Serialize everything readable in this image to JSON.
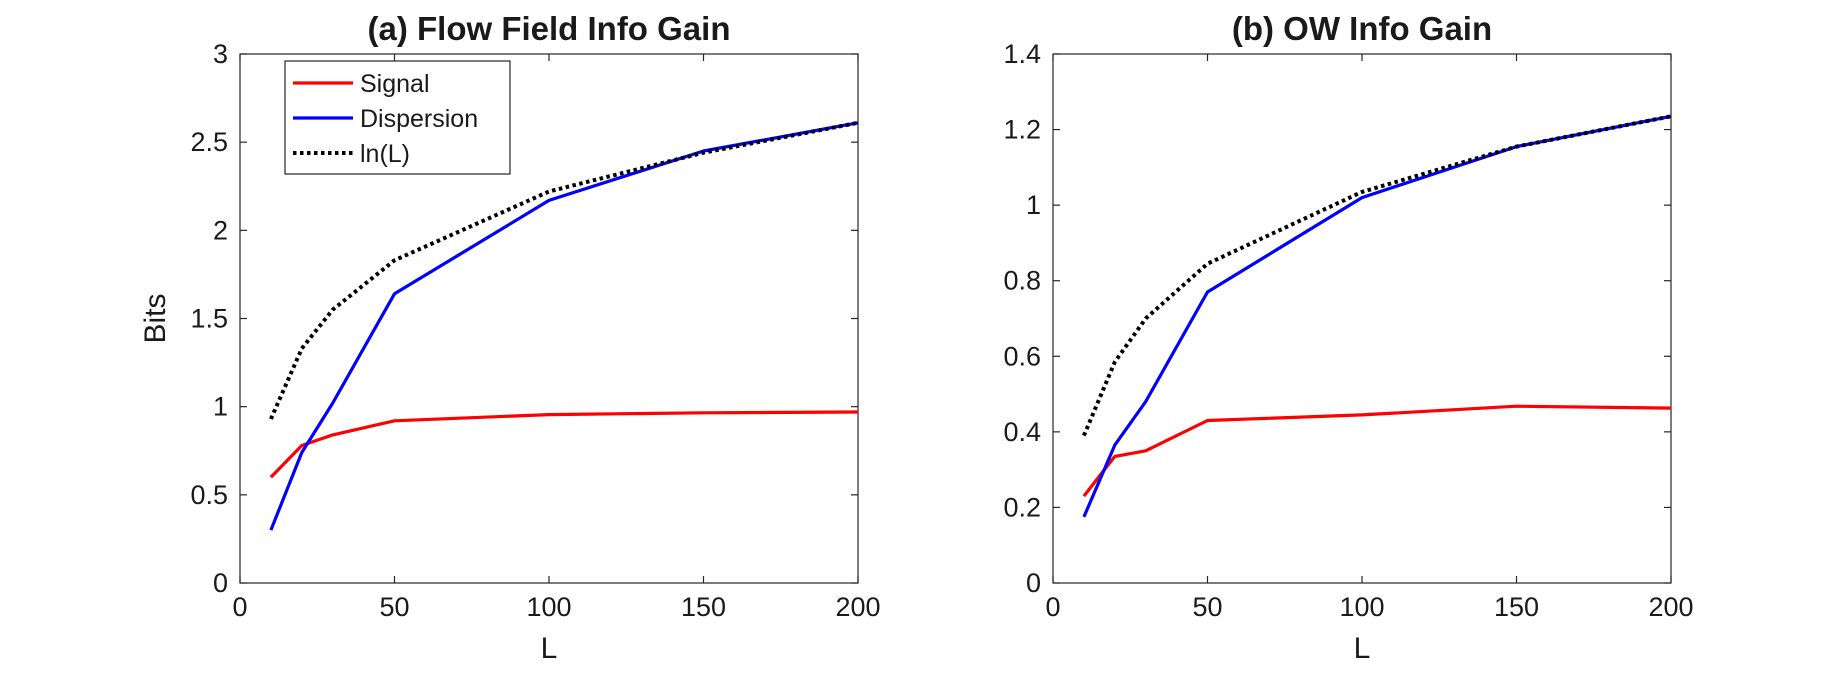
{
  "chart_data": [
    {
      "type": "line",
      "title": "(a) Flow Field Info Gain",
      "xlabel": "L",
      "ylabel": "Bits",
      "xlim": [
        0,
        200
      ],
      "ylim": [
        0,
        3
      ],
      "xticks": [
        0,
        50,
        100,
        150,
        200
      ],
      "yticks": [
        0,
        0.5,
        1,
        1.5,
        2,
        2.5,
        3
      ],
      "xtick_labels": [
        "0",
        "50",
        "100",
        "150",
        "200"
      ],
      "ytick_labels": [
        "0",
        "0.5",
        "1",
        "1.5",
        "2",
        "2.5",
        "3"
      ],
      "x": [
        10,
        20,
        30,
        50,
        100,
        150,
        200
      ],
      "legend_position": "top-left",
      "series": [
        {
          "name": "Signal",
          "color": "#ff0000",
          "style": "solid",
          "values": [
            0.6,
            0.78,
            0.84,
            0.92,
            0.955,
            0.965,
            0.97
          ]
        },
        {
          "name": "Dispersion",
          "color": "#0000ff",
          "style": "solid",
          "values": [
            0.3,
            0.74,
            1.02,
            1.64,
            2.17,
            2.45,
            2.61
          ]
        },
        {
          "name": "ln(L)",
          "color": "#000000",
          "style": "dotted",
          "values": [
            0.93,
            1.33,
            1.55,
            1.83,
            2.22,
            2.44,
            2.61
          ]
        }
      ]
    },
    {
      "type": "line",
      "title": "(b) OW Info Gain",
      "xlabel": "L",
      "ylabel": "",
      "xlim": [
        0,
        200
      ],
      "ylim": [
        0,
        1.4
      ],
      "xticks": [
        0,
        50,
        100,
        150,
        200
      ],
      "yticks": [
        0,
        0.2,
        0.4,
        0.6,
        0.8,
        1,
        1.2,
        1.4
      ],
      "xtick_labels": [
        "0",
        "50",
        "100",
        "150",
        "200"
      ],
      "ytick_labels": [
        "0",
        "0.2",
        "0.4",
        "0.6",
        "0.8",
        "1",
        "1.2",
        "1.4"
      ],
      "x": [
        10,
        20,
        30,
        50,
        100,
        150,
        200
      ],
      "legend_position": "none",
      "series": [
        {
          "name": "Signal",
          "color": "#ff0000",
          "style": "solid",
          "values": [
            0.23,
            0.335,
            0.35,
            0.43,
            0.445,
            0.468,
            0.463
          ]
        },
        {
          "name": "Dispersion",
          "color": "#0000ff",
          "style": "solid",
          "values": [
            0.175,
            0.365,
            0.48,
            0.77,
            1.02,
            1.155,
            1.235
          ]
        },
        {
          "name": "ln(L)",
          "color": "#000000",
          "style": "dotted",
          "values": [
            0.39,
            0.585,
            0.7,
            0.845,
            1.035,
            1.155,
            1.235
          ]
        }
      ]
    }
  ]
}
